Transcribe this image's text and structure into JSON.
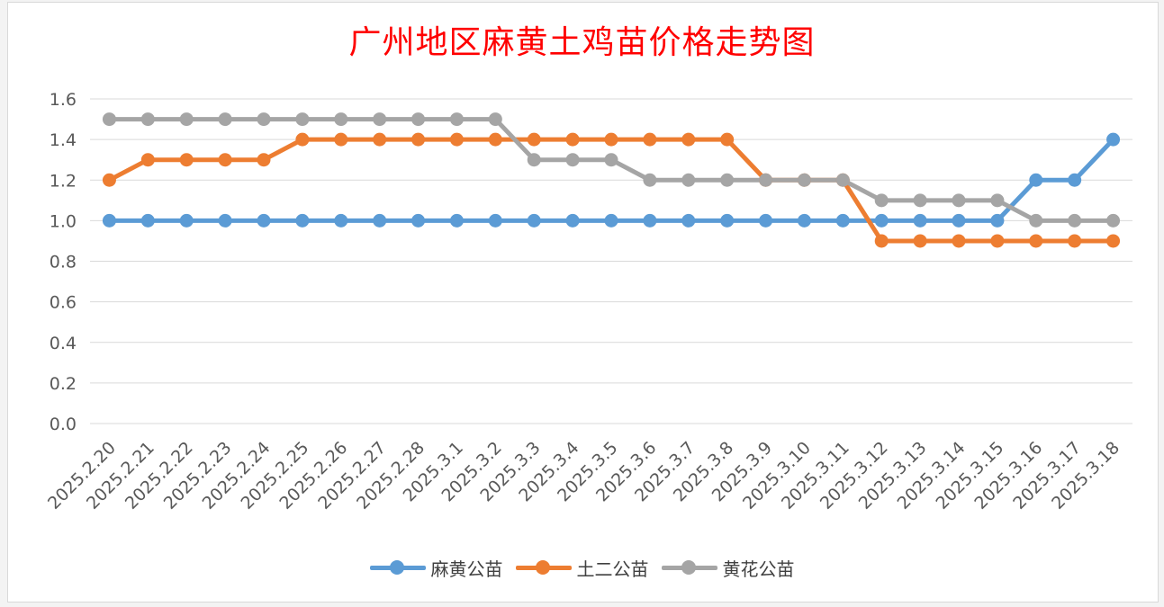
{
  "chart_data": {
    "type": "line",
    "title": "广州地区麻黄土鸡苗价格走势图",
    "xlabel": "",
    "ylabel": "",
    "ylim": [
      0,
      1.6
    ],
    "yticks": [
      "0.0",
      "0.2",
      "0.4",
      "0.6",
      "0.8",
      "1.0",
      "1.2",
      "1.4",
      "1.6"
    ],
    "grid": true,
    "legend_position": "bottom",
    "categories": [
      "2025.2.20",
      "2025.2.21",
      "2025.2.22",
      "2025.2.23",
      "2025.2.24",
      "2025.2.25",
      "2025.2.26",
      "2025.2.27",
      "2025.2.28",
      "2025.3.1",
      "2025.3.2",
      "2025.3.3",
      "2025.3.4",
      "2025.3.5",
      "2025.3.6",
      "2025.3.7",
      "2025.3.8",
      "2025.3.9",
      "2025.3.10",
      "2025.3.11",
      "2025.3.12",
      "2025.3.13",
      "2025.3.14",
      "2025.3.15",
      "2025.3.16",
      "2025.3.17",
      "2025.3.18"
    ],
    "series": [
      {
        "name": "麻黄公苗",
        "color": "#5b9bd5",
        "values": [
          1.0,
          1.0,
          1.0,
          1.0,
          1.0,
          1.0,
          1.0,
          1.0,
          1.0,
          1.0,
          1.0,
          1.0,
          1.0,
          1.0,
          1.0,
          1.0,
          1.0,
          1.0,
          1.0,
          1.0,
          1.0,
          1.0,
          1.0,
          1.0,
          1.2,
          1.2,
          1.4
        ]
      },
      {
        "name": "土二公苗",
        "color": "#ed7d31",
        "values": [
          1.2,
          1.3,
          1.3,
          1.3,
          1.3,
          1.4,
          1.4,
          1.4,
          1.4,
          1.4,
          1.4,
          1.4,
          1.4,
          1.4,
          1.4,
          1.4,
          1.4,
          1.2,
          1.2,
          1.2,
          0.9,
          0.9,
          0.9,
          0.9,
          0.9,
          0.9,
          0.9
        ]
      },
      {
        "name": "黄花公苗",
        "color": "#a5a5a5",
        "values": [
          1.5,
          1.5,
          1.5,
          1.5,
          1.5,
          1.5,
          1.5,
          1.5,
          1.5,
          1.5,
          1.5,
          1.3,
          1.3,
          1.3,
          1.2,
          1.2,
          1.2,
          1.2,
          1.2,
          1.2,
          1.1,
          1.1,
          1.1,
          1.1,
          1.0,
          1.0,
          1.0
        ]
      }
    ]
  }
}
